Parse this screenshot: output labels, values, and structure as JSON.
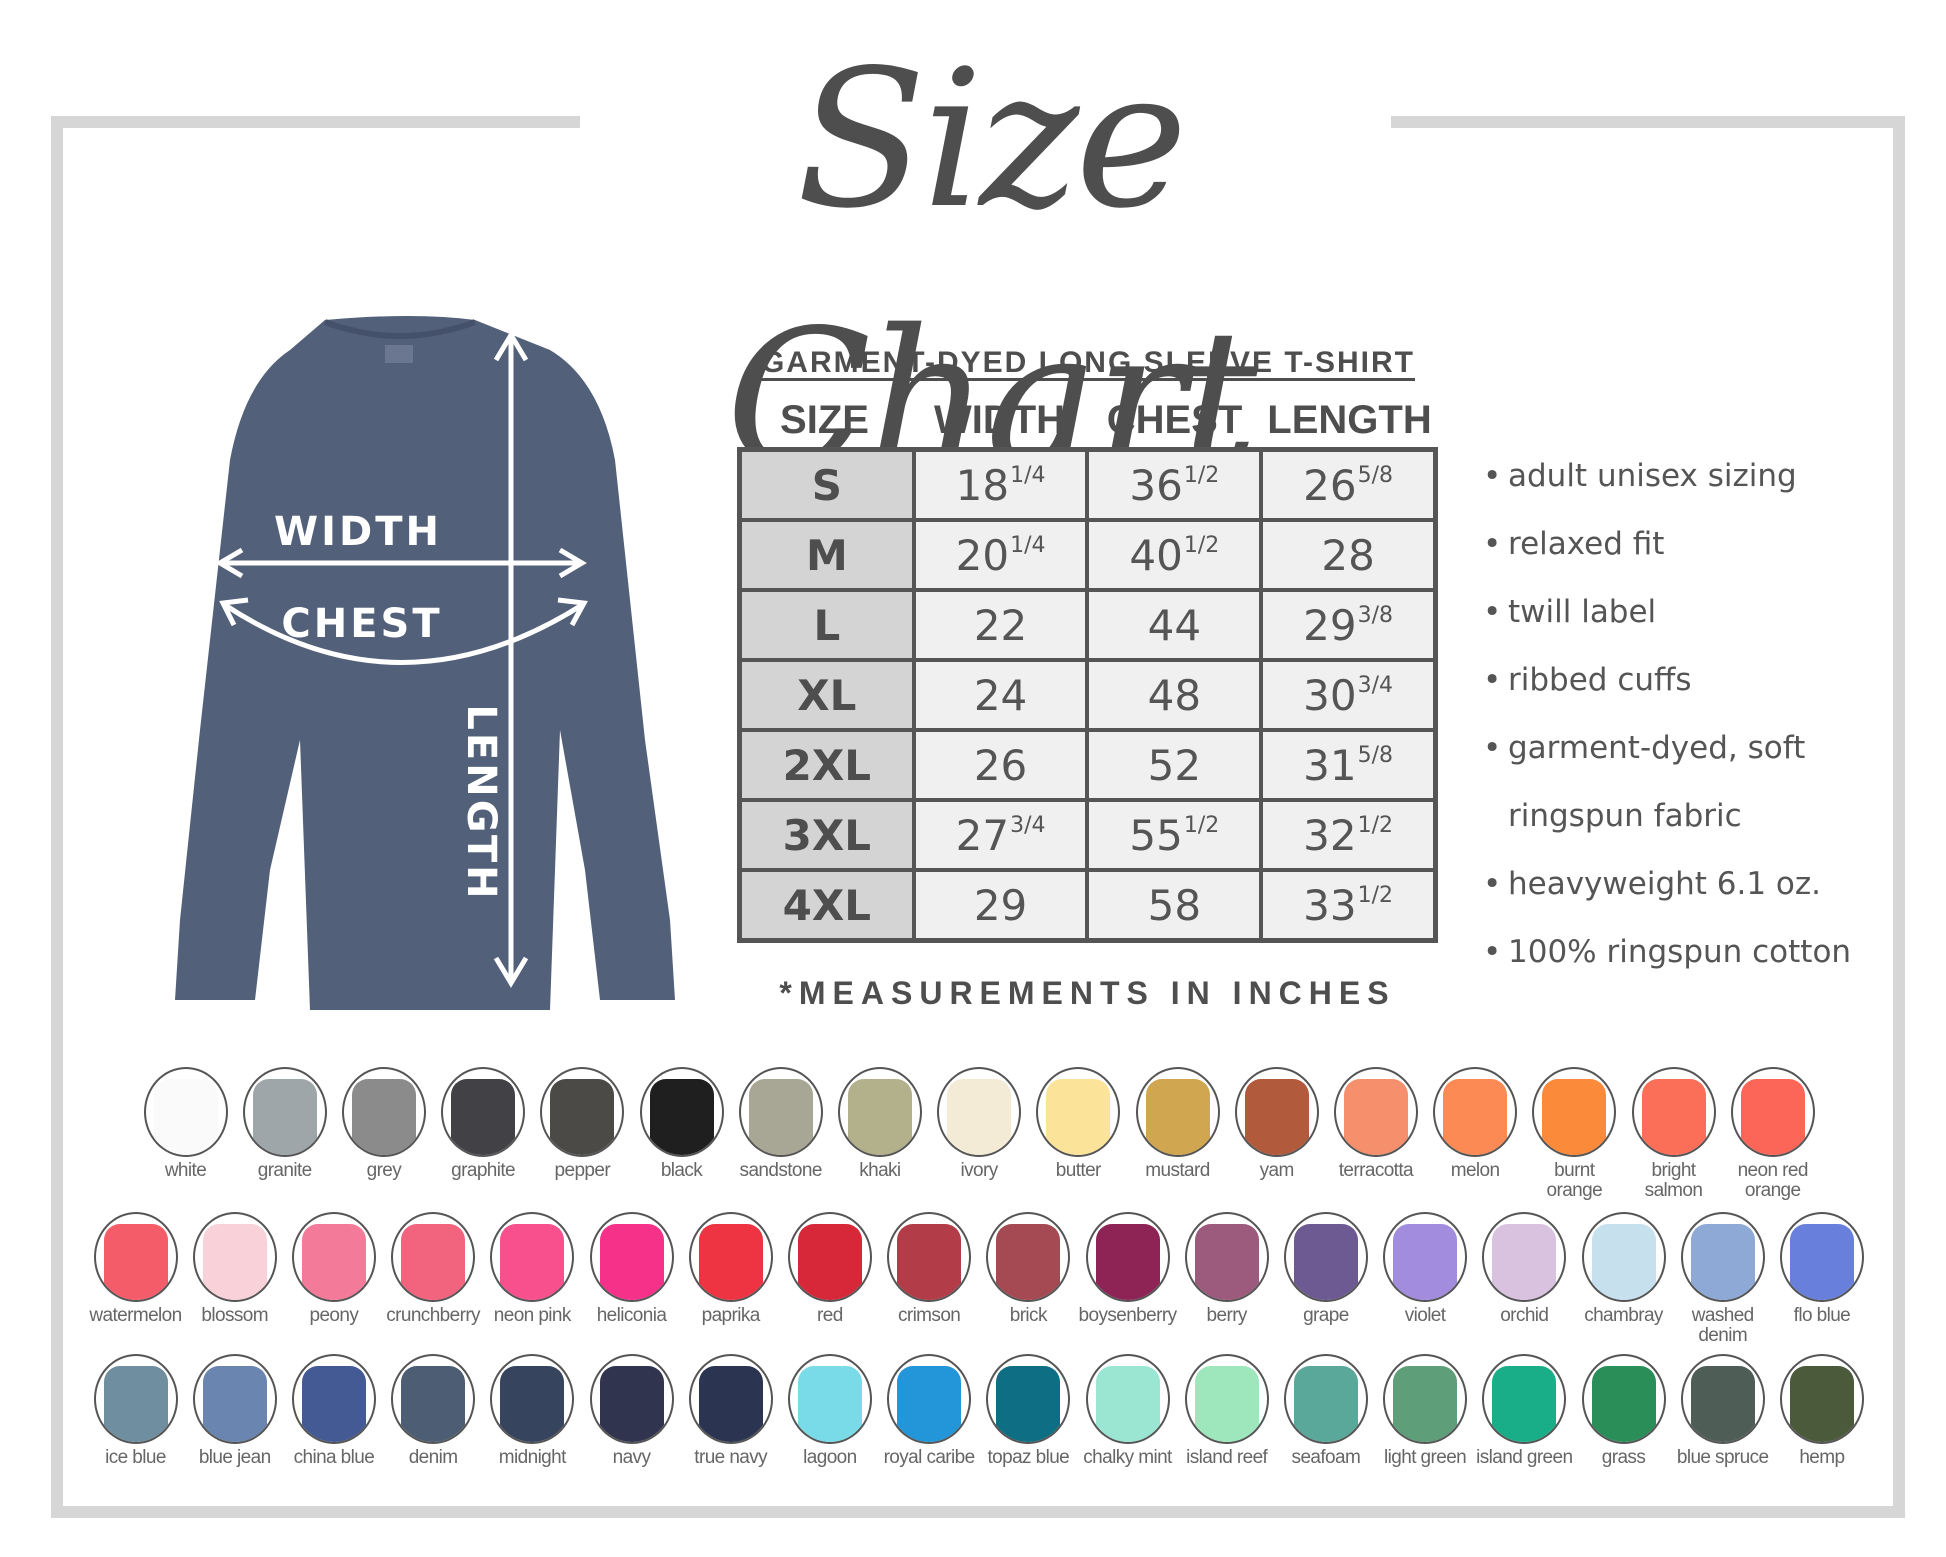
{
  "title": "Size Chart",
  "shirt": {
    "color": "#536079",
    "labels": {
      "width": "WIDTH",
      "chest": "CHEST",
      "length": "LENGTH"
    }
  },
  "table": {
    "title": "GARMENT-DYED LONG SLEEVE T-SHIRT",
    "headers": [
      "SIZE",
      "WIDTH",
      "CHEST",
      "LENGTH"
    ],
    "rows": [
      {
        "size": "S",
        "width": [
          "18",
          "1/4"
        ],
        "chest": [
          "36",
          "1/2"
        ],
        "length": [
          "26",
          "5/8"
        ]
      },
      {
        "size": "M",
        "width": [
          "20",
          "1/4"
        ],
        "chest": [
          "40",
          "1/2"
        ],
        "length": [
          "28",
          ""
        ]
      },
      {
        "size": "L",
        "width": [
          "22",
          ""
        ],
        "chest": [
          "44",
          ""
        ],
        "length": [
          "29",
          "3/8"
        ]
      },
      {
        "size": "XL",
        "width": [
          "24",
          ""
        ],
        "chest": [
          "48",
          ""
        ],
        "length": [
          "30",
          "3/4"
        ]
      },
      {
        "size": "2XL",
        "width": [
          "26",
          ""
        ],
        "chest": [
          "52",
          ""
        ],
        "length": [
          "31",
          "5/8"
        ]
      },
      {
        "size": "3XL",
        "width": [
          "27",
          "3/4"
        ],
        "chest": [
          "55",
          "1/2"
        ],
        "length": [
          "32",
          "1/2"
        ]
      },
      {
        "size": "4XL",
        "width": [
          "29",
          ""
        ],
        "chest": [
          "58",
          ""
        ],
        "length": [
          "33",
          "1/2"
        ]
      }
    ],
    "note": "*MEASUREMENTS IN INCHES"
  },
  "features": [
    "adult unisex sizing",
    "relaxed fit",
    "twill label",
    "ribbed cuffs",
    "garment-dyed, soft",
    "ringspun fabric",
    "heavyweight 6.1 oz.",
    "100% ringspun cotton"
  ],
  "colors": [
    [
      {
        "name": "white",
        "hex": "#fafafa"
      },
      {
        "name": "granite",
        "hex": "#9ea6aa"
      },
      {
        "name": "grey",
        "hex": "#8a8b8a"
      },
      {
        "name": "graphite",
        "hex": "#424146"
      },
      {
        "name": "pepper",
        "hex": "#4b4a46"
      },
      {
        "name": "black",
        "hex": "#1f1f20"
      },
      {
        "name": "sandstone",
        "hex": "#a8a694"
      },
      {
        "name": "khaki",
        "hex": "#b3b08c"
      },
      {
        "name": "ivory",
        "hex": "#f3ebd6"
      },
      {
        "name": "butter",
        "hex": "#fbe49a"
      },
      {
        "name": "mustard",
        "hex": "#d0a650"
      },
      {
        "name": "yam",
        "hex": "#b25a3c"
      },
      {
        "name": "terracotta",
        "hex": "#f58f6c"
      },
      {
        "name": "melon",
        "hex": "#fb8a55"
      },
      {
        "name": "burnt orange",
        "hex": "#fb8a3a"
      },
      {
        "name": "bright salmon",
        "hex": "#fb6e58"
      },
      {
        "name": "neon red orange",
        "hex": "#fb6658"
      }
    ],
    [
      {
        "name": "watermelon",
        "hex": "#f45c6a"
      },
      {
        "name": "blossom",
        "hex": "#f8d2d8"
      },
      {
        "name": "peony",
        "hex": "#f47a9a"
      },
      {
        "name": "crunchberry",
        "hex": "#f2637e"
      },
      {
        "name": "neon pink",
        "hex": "#f8508c"
      },
      {
        "name": "heliconia",
        "hex": "#f5318a"
      },
      {
        "name": "paprika",
        "hex": "#ee3442"
      },
      {
        "name": "red",
        "hex": "#d7283a"
      },
      {
        "name": "crimson",
        "hex": "#b23c48"
      },
      {
        "name": "brick",
        "hex": "#a54a52"
      },
      {
        "name": "boysenberry",
        "hex": "#8e2455"
      },
      {
        "name": "berry",
        "hex": "#9c5a7c"
      },
      {
        "name": "grape",
        "hex": "#6e5a92"
      },
      {
        "name": "violet",
        "hex": "#a28cde"
      },
      {
        "name": "orchid",
        "hex": "#d9c2e0"
      },
      {
        "name": "chambray",
        "hex": "#c6e0ee"
      },
      {
        "name": "washed denim",
        "hex": "#8ea9d6"
      },
      {
        "name": "flo blue",
        "hex": "#6880db"
      }
    ],
    [
      {
        "name": "ice blue",
        "hex": "#6f8fa0"
      },
      {
        "name": "blue jean",
        "hex": "#6a85b0"
      },
      {
        "name": "china blue",
        "hex": "#435a94"
      },
      {
        "name": "denim",
        "hex": "#4c5d74"
      },
      {
        "name": "midnight",
        "hex": "#36445e"
      },
      {
        "name": "navy",
        "hex": "#30344e"
      },
      {
        "name": "true navy",
        "hex": "#2b3450"
      },
      {
        "name": "lagoon",
        "hex": "#7adbe8"
      },
      {
        "name": "royal caribe",
        "hex": "#2296d8"
      },
      {
        "name": "topaz blue",
        "hex": "#0e6e84"
      },
      {
        "name": "chalky mint",
        "hex": "#9ae6d2"
      },
      {
        "name": "island reef",
        "hex": "#9ee6bc"
      },
      {
        "name": "seafoam",
        "hex": "#5aa89a"
      },
      {
        "name": "light green",
        "hex": "#5e9e78"
      },
      {
        "name": "island green",
        "hex": "#1aae88"
      },
      {
        "name": "grass",
        "hex": "#2a8e58"
      },
      {
        "name": "blue spruce",
        "hex": "#4e5e56"
      },
      {
        "name": "hemp",
        "hex": "#4c5a3c"
      }
    ]
  ]
}
